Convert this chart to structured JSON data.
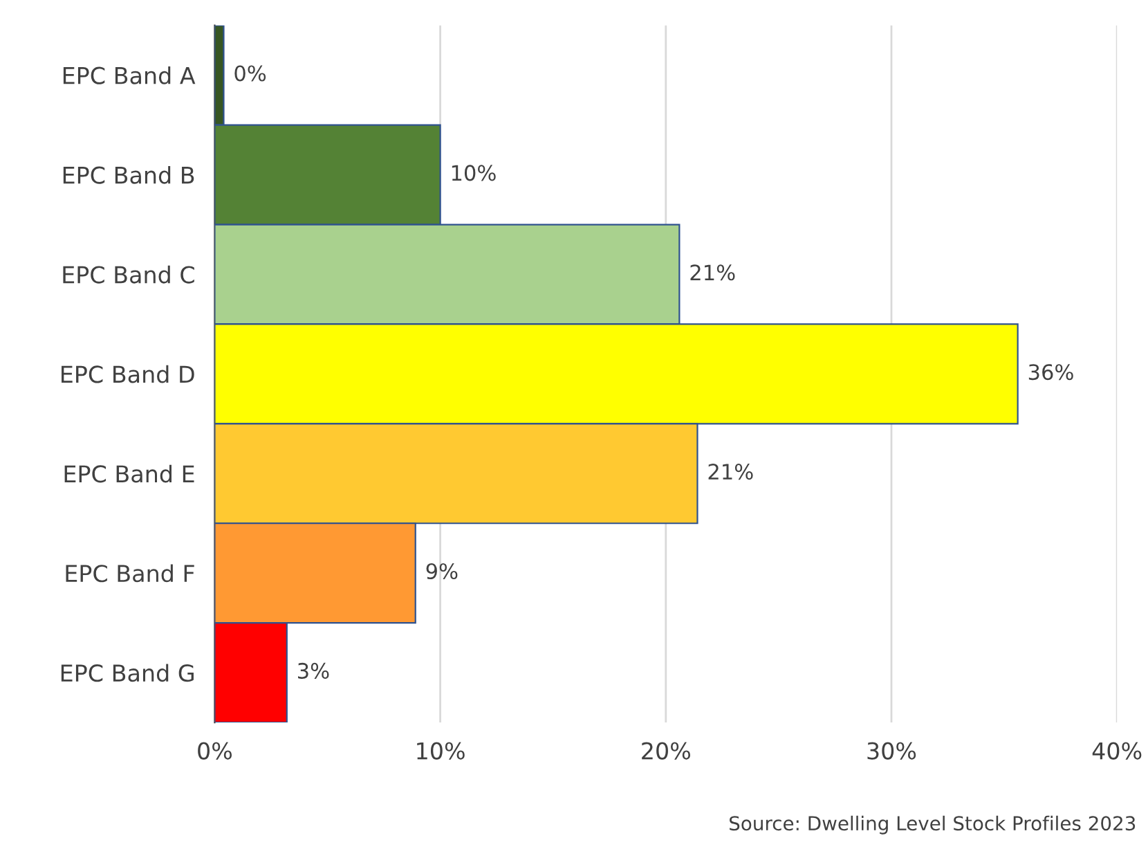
{
  "chart_data": {
    "type": "bar",
    "orientation": "horizontal",
    "categories": [
      "EPC Band A",
      "EPC Band B",
      "EPC Band C",
      "EPC Band D",
      "EPC Band E",
      "EPC Band F",
      "EPC Band G"
    ],
    "values": [
      0.4,
      10,
      20.6,
      35.6,
      21.4,
      8.9,
      3.2
    ],
    "value_labels": [
      "0%",
      "10%",
      "21%",
      "36%",
      "21%",
      "9%",
      "3%"
    ],
    "colors": [
      "#375623",
      "#548235",
      "#a9d18e",
      "#ffff00",
      "#ffc931",
      "#ff9933",
      "#ff0000"
    ],
    "xlim": [
      0,
      40
    ],
    "xticks": [
      {
        "value": 0,
        "label": "0%"
      },
      {
        "value": 10,
        "label": "10%"
      },
      {
        "value": 20,
        "label": "20%"
      },
      {
        "value": 30,
        "label": "30%"
      },
      {
        "value": 40,
        "label": "40%"
      }
    ],
    "grid": "x",
    "legend": false,
    "annotations": [
      "Source: Dwelling Level Stock Profiles 2023"
    ]
  }
}
